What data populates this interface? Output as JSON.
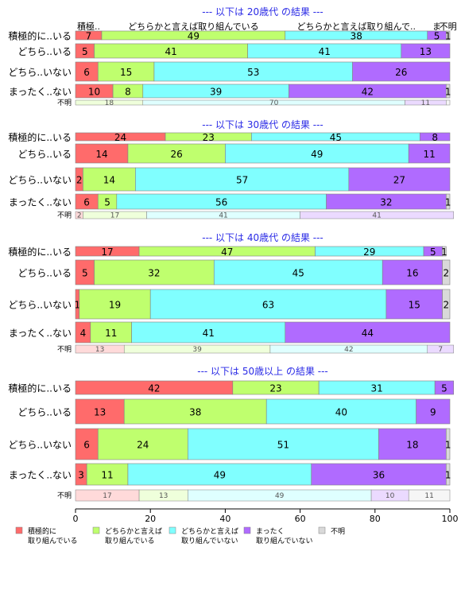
{
  "chart_data": {
    "type": "bar",
    "orientation": "horizontal",
    "stacked": "percent",
    "xlim": [
      0,
      100
    ],
    "xticks": [
      "0",
      "20",
      "40",
      "60",
      "80",
      "100"
    ],
    "series": [
      {
        "name": "積極的に\n取り組んでいる",
        "color": "#ff6b6b"
      },
      {
        "name": "どちらかと言えば\n取り組んでいる",
        "color": "#bfff6e"
      },
      {
        "name": "どちらかと言えば\n取り組んでいない",
        "color": "#80ffff"
      },
      {
        "name": "まったく\n取り組んでいない",
        "color": "#b06bff"
      },
      {
        "name": "不明",
        "color": "#d9d9d9"
      }
    ],
    "colors": {
      "title": "#2a2ae6",
      "border": "#808080"
    },
    "panels": [
      {
        "title": "--- 以下は 20歳代 の結果 ---",
        "top_labels": [
          "積極..",
          "どちらかと言えば取り組んでいる",
          "どちらかと言えば取り組んで..",
          "ま",
          "不明"
        ],
        "rows": [
          {
            "label": "積極的に..いる",
            "values": [
              7,
              49,
              38,
              5,
              1
            ]
          },
          {
            "label": "どちら..いる",
            "values": [
              5,
              41,
              41,
              13,
              0
            ]
          },
          {
            "label": "どちら..いない",
            "values": [
              6,
              15,
              53,
              26,
              0
            ]
          },
          {
            "label": "まったく..ない",
            "values": [
              10,
              8,
              39,
              42,
              1
            ]
          }
        ],
        "unknown": {
          "label": "不明",
          "values": [
            0,
            18,
            70,
            11,
            1
          ],
          "shown": [
            "",
            "18",
            "70",
            "11",
            ""
          ]
        }
      },
      {
        "title": "--- 以下は 30歳代 の結果 ---",
        "top_labels": [],
        "rows": [
          {
            "label": "積極的に..いる",
            "values": [
              24,
              23,
              45,
              8,
              0
            ]
          },
          {
            "label": "どちら..いる",
            "values": [
              14,
              26,
              49,
              11,
              0
            ]
          },
          {
            "label": "どちら..いない",
            "values": [
              2,
              14,
              57,
              27,
              0
            ]
          },
          {
            "label": "まったく..ない",
            "values": [
              6,
              5,
              56,
              32,
              1
            ]
          }
        ],
        "unknown": {
          "label": "不明",
          "values": [
            2,
            17,
            41,
            41,
            0
          ],
          "shown": [
            "2",
            "17",
            "41",
            "41",
            ""
          ]
        }
      },
      {
        "title": "--- 以下は 40歳代 の結果 ---",
        "top_labels": [],
        "rows": [
          {
            "label": "積極的に..いる",
            "values": [
              17,
              47,
              29,
              5,
              1
            ]
          },
          {
            "label": "どちら..いる",
            "values": [
              5,
              32,
              45,
              16,
              2
            ]
          },
          {
            "label": "どちら..いない",
            "values": [
              1,
              19,
              63,
              15,
              2
            ]
          },
          {
            "label": "まったく..ない",
            "values": [
              4,
              11,
              41,
              44,
              0
            ]
          }
        ],
        "unknown": {
          "label": "不明",
          "values": [
            13,
            39,
            42,
            7,
            0
          ],
          "shown": [
            "13",
            "39",
            "42",
            "7",
            ""
          ]
        }
      },
      {
        "title": "--- 以下は 50歳以上 の結果 ---",
        "top_labels": [],
        "rows": [
          {
            "label": "積極的に..いる",
            "values": [
              42,
              23,
              31,
              5,
              0
            ]
          },
          {
            "label": "どちら..いる",
            "values": [
              13,
              38,
              40,
              9,
              0
            ]
          },
          {
            "label": "どちら..いない",
            "values": [
              6,
              24,
              51,
              18,
              1
            ]
          },
          {
            "label": "まったく..ない",
            "values": [
              3,
              11,
              49,
              36,
              1
            ]
          }
        ],
        "unknown": {
          "label": "不明",
          "values": [
            17,
            13,
            49,
            10,
            11
          ],
          "shown": [
            "17",
            "13",
            "49",
            "10",
            "11"
          ]
        }
      }
    ]
  }
}
